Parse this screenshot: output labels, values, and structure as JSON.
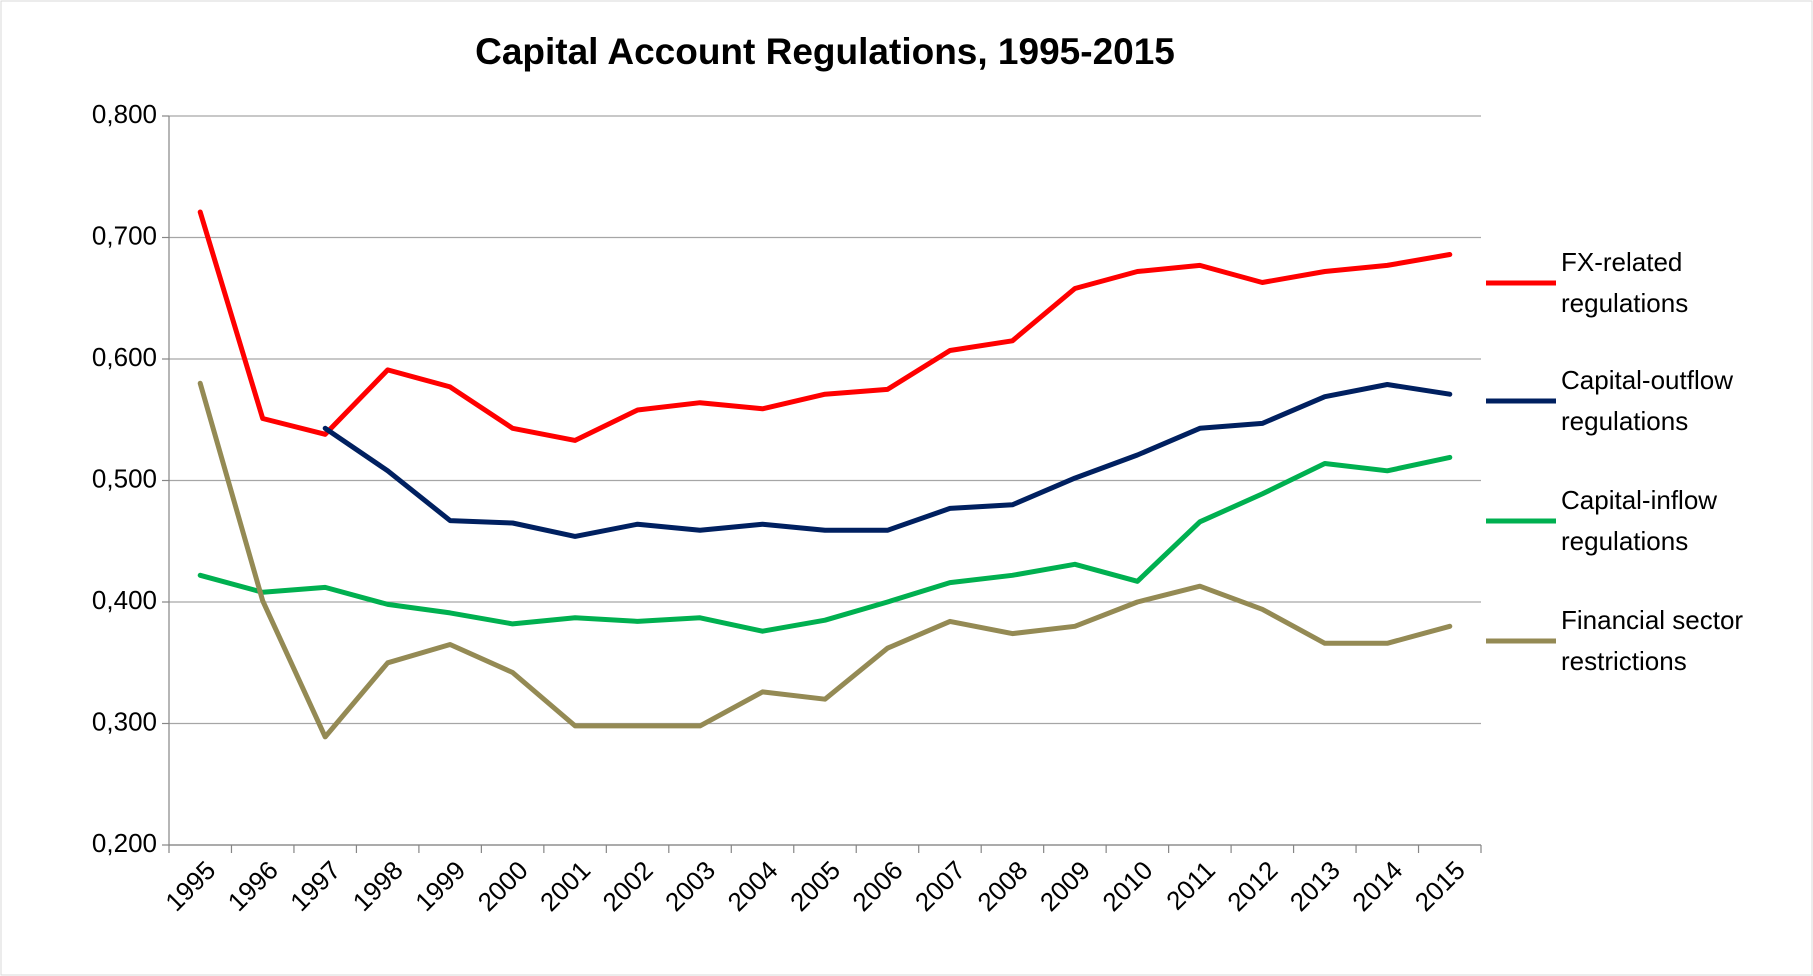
{
  "chart_data": {
    "type": "line",
    "title": "Capital Account Regulations, 1995-2015",
    "categories": [
      "1995",
      "1996",
      "1997",
      "1998",
      "1999",
      "2000",
      "2001",
      "2002",
      "2003",
      "2004",
      "2005",
      "2006",
      "2007",
      "2008",
      "2009",
      "2010",
      "2011",
      "2012",
      "2013",
      "2014",
      "2015"
    ],
    "series": [
      {
        "name": "FX-related regulations",
        "color": "#ff0000",
        "values": [
          0.721,
          0.551,
          0.538,
          0.591,
          0.577,
          0.543,
          0.533,
          0.558,
          0.564,
          0.559,
          0.571,
          0.575,
          0.607,
          0.615,
          0.658,
          0.672,
          0.677,
          0.663,
          0.672,
          0.677,
          0.686
        ]
      },
      {
        "name": "Capital-outflow regulations",
        "color": "#002060",
        "values": [
          null,
          null,
          0.543,
          0.508,
          0.467,
          0.465,
          0.454,
          0.464,
          0.459,
          0.464,
          0.459,
          0.459,
          0.477,
          0.48,
          0.502,
          0.521,
          0.543,
          0.547,
          0.569,
          0.579,
          0.571
        ]
      },
      {
        "name": "Capital-inflow regulations",
        "color": "#00b050",
        "values": [
          0.422,
          0.408,
          0.412,
          0.398,
          0.391,
          0.382,
          0.387,
          0.384,
          0.387,
          0.376,
          0.385,
          0.4,
          0.416,
          0.422,
          0.431,
          0.417,
          0.466,
          0.489,
          0.514,
          0.508,
          0.519
        ]
      },
      {
        "name": "Financial sector restrictions",
        "color": "#948a54",
        "values": [
          0.58,
          0.401,
          0.289,
          0.35,
          0.365,
          0.342,
          0.298,
          0.298,
          0.298,
          0.326,
          0.32,
          0.362,
          0.384,
          0.374,
          0.38,
          0.4,
          0.413,
          0.394,
          0.366,
          0.366,
          0.38
        ]
      }
    ],
    "ylim": [
      0.2,
      0.8
    ],
    "yticks": [
      {
        "value": 0.2,
        "label": "0,200"
      },
      {
        "value": 0.3,
        "label": "0,300"
      },
      {
        "value": 0.4,
        "label": "0,400"
      },
      {
        "value": 0.5,
        "label": "0,500"
      },
      {
        "value": 0.6,
        "label": "0,600"
      },
      {
        "value": 0.7,
        "label": "0,700"
      },
      {
        "value": 0.8,
        "label": "0,800"
      }
    ],
    "grid": true,
    "legend": "right"
  }
}
